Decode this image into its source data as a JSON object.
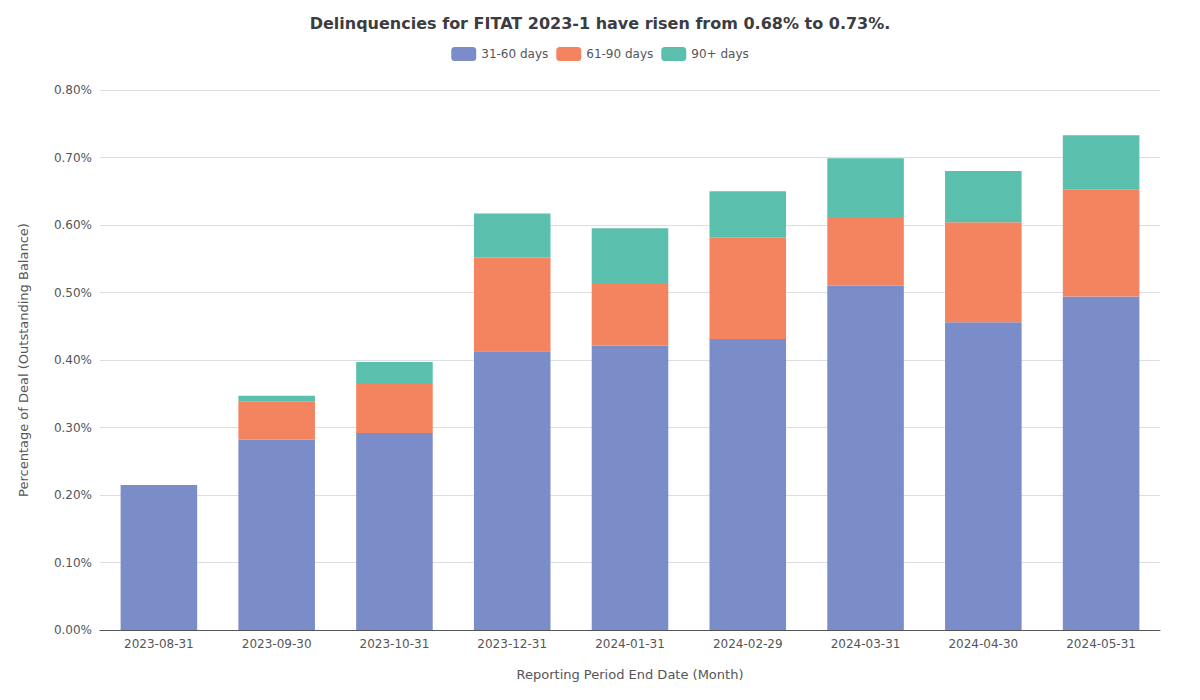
{
  "chart_data": {
    "type": "bar",
    "title": "Delinquencies for FITAT 2023-1 have risen from 0.68% to 0.73%.",
    "xlabel": "Reporting Period End Date (Month)",
    "ylabel": "Percentage of Deal (Outstanding Balance)",
    "categories": [
      "2023-08-31",
      "2023-09-30",
      "2023-10-31",
      "2023-12-31",
      "2024-01-31",
      "2024-02-29",
      "2024-03-31",
      "2024-04-30",
      "2024-05-31"
    ],
    "series": [
      {
        "name": "31-60 days",
        "color": "#7B8DC8",
        "values": [
          0.215,
          0.282,
          0.292,
          0.413,
          0.421,
          0.431,
          0.51,
          0.456,
          0.494
        ]
      },
      {
        "name": "61-90 days",
        "color": "#F4845F",
        "values": [
          0.0,
          0.056,
          0.074,
          0.139,
          0.093,
          0.151,
          0.102,
          0.148,
          0.159
        ]
      },
      {
        "name": "90+ days",
        "color": "#5BBFAD",
        "values": [
          0.0,
          0.009,
          0.031,
          0.065,
          0.081,
          0.068,
          0.087,
          0.076,
          0.08
        ]
      }
    ],
    "stacked": true,
    "ylim": [
      0,
      0.8
    ],
    "yticks": [
      {
        "value": 0,
        "label": "0.00%"
      },
      {
        "value": 0.1,
        "label": "0.10%"
      },
      {
        "value": 0.2,
        "label": "0.20%"
      },
      {
        "value": 0.3,
        "label": "0.30%"
      },
      {
        "value": 0.4,
        "label": "0.40%"
      },
      {
        "value": 0.5,
        "label": "0.50%"
      },
      {
        "value": 0.6,
        "label": "0.60%"
      },
      {
        "value": 0.7,
        "label": "0.70%"
      },
      {
        "value": 0.8,
        "label": "0.80%"
      }
    ],
    "grid": true,
    "legend": "top"
  }
}
